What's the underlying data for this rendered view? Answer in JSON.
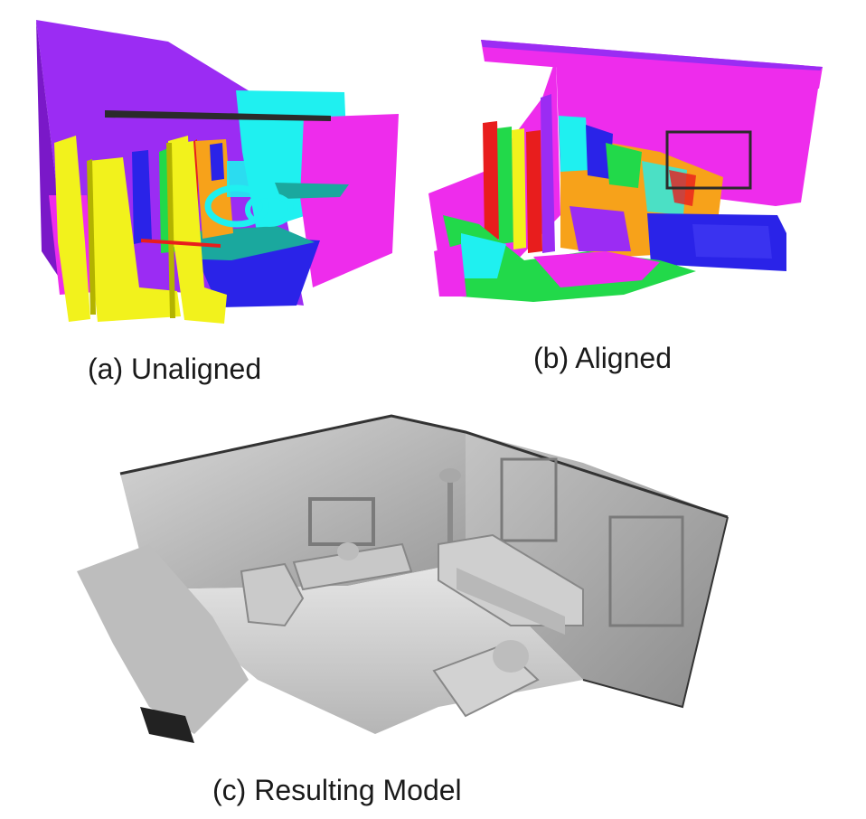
{
  "panels": [
    {
      "id": "a",
      "caption": "(a) Unaligned"
    },
    {
      "id": "b",
      "caption": "(b) Aligned"
    },
    {
      "id": "c",
      "caption": "(c) Resulting Model"
    }
  ],
  "colors": {
    "purple": "#9b2cf3",
    "magenta": "#ee2cec",
    "cyan": "#1ff0f0",
    "yellow": "#f2f21c",
    "blue": "#2a23e8",
    "green": "#22d94a",
    "red": "#e81d1d",
    "orange": "#f7a21a",
    "teal": "#1aa89e",
    "gray": "#b9b9b9"
  }
}
